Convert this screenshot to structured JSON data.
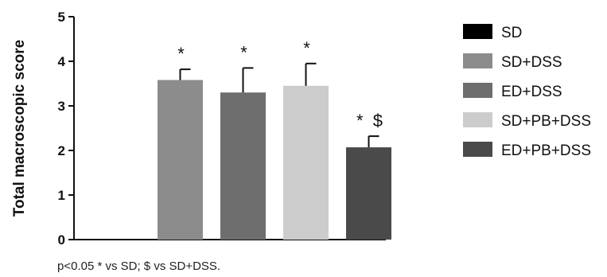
{
  "chart_data": {
    "type": "bar",
    "title": "",
    "xlabel": "",
    "ylabel": "Total macroscopic score",
    "ylim": [
      0,
      5
    ],
    "yticks": [
      "0",
      "1",
      "2",
      "3",
      "4",
      "5"
    ],
    "grid": false,
    "legend_position": "right",
    "categories": [
      "SD",
      "SD+DSS",
      "ED+DSS",
      "SD+PB+DSS",
      "ED+PB+DSS"
    ],
    "values": [
      0,
      3.58,
      3.3,
      3.45,
      2.07
    ],
    "errors": [
      0,
      0.24,
      0.55,
      0.5,
      0.25
    ],
    "colors": [
      "#000000",
      "#8c8c8c",
      "#6e6e6e",
      "#cccccc",
      "#4a4a4a"
    ],
    "annotations": [
      "",
      "*",
      "*",
      "*",
      "* $"
    ],
    "footnote": "p<0.05 * vs SD; $ vs SD+DSS."
  }
}
